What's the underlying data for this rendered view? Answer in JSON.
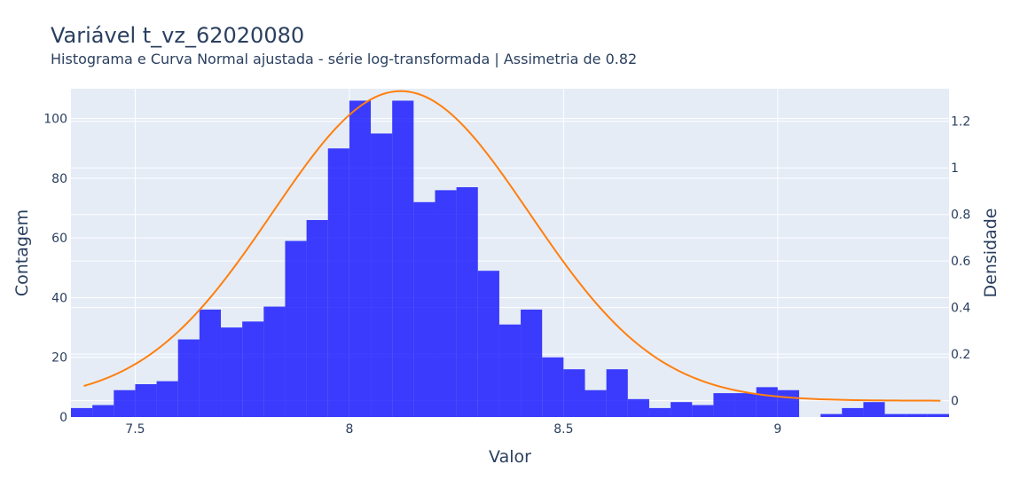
{
  "title": "Variável t_vz_62020080",
  "subtitle": "Histograma e Curva Normal ajustada - série log-transformada | Assimetria de 0.82",
  "colors": {
    "bars": "#0000ff",
    "curve": "#ff7f0e",
    "plot_bg": "#e5ecf6",
    "grid": "#ffffff",
    "text": "#2a3f5f"
  },
  "chart_data": {
    "type": "bar",
    "title": "Variável t_vz_62020080",
    "subtitle": "Histograma e Curva Normal ajustada - série log-transformada | Assimetria de 0.82",
    "xlabel": "Valor",
    "ylabel": "Contagem",
    "y2label": "Densidade",
    "grid": true,
    "xlim": [
      7.35,
      9.4
    ],
    "ylim": [
      0,
      110
    ],
    "y2lim": [
      -0.07,
      1.34
    ],
    "x_ticks": [
      7.5,
      8,
      8.5,
      9
    ],
    "x_tick_labels": [
      "7.5",
      "8",
      "8.5",
      "9"
    ],
    "y_ticks": [
      0,
      20,
      40,
      60,
      80,
      100
    ],
    "y_tick_labels": [
      "0",
      "20",
      "40",
      "60",
      "80",
      "100"
    ],
    "y2_ticks": [
      0,
      0.2,
      0.4,
      0.6,
      0.8,
      1,
      1.2
    ],
    "y2_tick_labels": [
      "0",
      "0.2",
      "0.4",
      "0.6",
      "0.8",
      "1",
      "1.2"
    ],
    "histogram": {
      "name": "Histograma",
      "bin_start": 7.35,
      "bin_width": 0.05,
      "counts": [
        3,
        4,
        9,
        11,
        12,
        26,
        36,
        30,
        32,
        37,
        59,
        66,
        90,
        106,
        95,
        106,
        72,
        76,
        77,
        49,
        31,
        36,
        20,
        16,
        9,
        16,
        6,
        3,
        5,
        4,
        8,
        8,
        10,
        9,
        0,
        1,
        3,
        5,
        1,
        1,
        1
      ]
    },
    "normal_curve": {
      "name": "Curva Normal",
      "mean": 8.12,
      "std": 0.3,
      "x": [
        7.38,
        9.38
      ]
    }
  }
}
